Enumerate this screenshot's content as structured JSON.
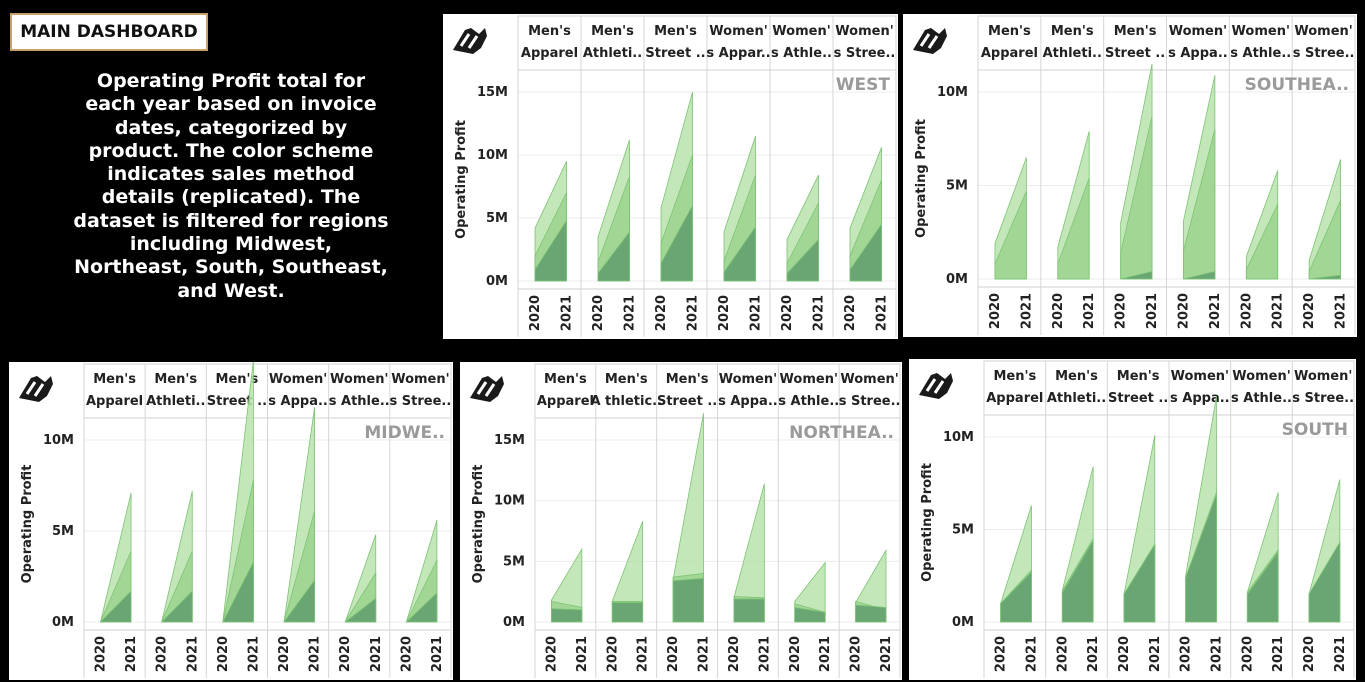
{
  "dashboard_title": "MAIN DASHBOARD",
  "description": "Operating Profit total for each year based on invoice dates, categorized by product. The color scheme indicates sales method details (replicated). The dataset is filtered for regions including Midwest, Northeast, South, Southeast, and West.",
  "colors": {
    "layer1": "#b9e3ac",
    "layer2": "#97d08a",
    "layer3": "#5f9e6e",
    "line": "#7cc474"
  },
  "icon": "logo-icon",
  "chart_data": [
    {
      "type": "area",
      "region_label": "WEST",
      "ylabel": "Operating Profit",
      "x": [
        "2020",
        "2021"
      ],
      "ylim": [
        0,
        15000000
      ],
      "yticks": [
        "0M",
        "5M",
        "10M",
        "15M"
      ],
      "categories": [
        {
          "header": [
            "Men's",
            "Apparel"
          ],
          "layers": [
            [
              4200000,
              9500000
            ],
            [
              2000000,
              7000000
            ],
            [
              900000,
              4800000
            ]
          ]
        },
        {
          "header": [
            "Men's",
            "Athleti.."
          ],
          "layers": [
            [
              3500000,
              11200000
            ],
            [
              1500000,
              8300000
            ],
            [
              600000,
              3900000
            ]
          ]
        },
        {
          "header": [
            "Men's",
            "Street .."
          ],
          "layers": [
            [
              5800000,
              15000000
            ],
            [
              3000000,
              10000000
            ],
            [
              1400000,
              6000000
            ]
          ]
        },
        {
          "header": [
            "Women'",
            "s Appar.."
          ],
          "layers": [
            [
              3900000,
              11500000
            ],
            [
              1600000,
              8400000
            ],
            [
              700000,
              4300000
            ]
          ]
        },
        {
          "header": [
            "Women'",
            "s Athle.."
          ],
          "layers": [
            [
              3300000,
              8400000
            ],
            [
              1400000,
              6200000
            ],
            [
              600000,
              3300000
            ]
          ]
        },
        {
          "header": [
            "Women'",
            "s Stree.."
          ],
          "layers": [
            [
              4200000,
              10600000
            ],
            [
              2000000,
              8000000
            ],
            [
              900000,
              4500000
            ]
          ]
        }
      ]
    },
    {
      "type": "area",
      "region_label": "SOUTHEA..",
      "ylabel": "Operating Profit",
      "x": [
        "2020",
        "2021"
      ],
      "ylim": [
        0,
        10000000
      ],
      "yticks": [
        "0M",
        "5M",
        "10M"
      ],
      "categories": [
        {
          "header": [
            "Men's",
            "Apparel"
          ],
          "layers": [
            [
              1900000,
              6500000
            ],
            [
              800000,
              4700000
            ],
            [
              0,
              0
            ]
          ]
        },
        {
          "header": [
            "Men's",
            "Athleti.."
          ],
          "layers": [
            [
              1700000,
              7900000
            ],
            [
              800000,
              5400000
            ],
            [
              0,
              0
            ]
          ]
        },
        {
          "header": [
            "Men's",
            "Street .."
          ],
          "layers": [
            [
              3000000,
              11500000
            ],
            [
              1400000,
              8700000
            ],
            [
              0,
              400000
            ]
          ]
        },
        {
          "header": [
            "Women'",
            "s Appa.."
          ],
          "layers": [
            [
              3100000,
              10900000
            ],
            [
              1500000,
              8000000
            ],
            [
              0,
              400000
            ]
          ]
        },
        {
          "header": [
            "Women'",
            "s Athle.."
          ],
          "layers": [
            [
              1200000,
              5800000
            ],
            [
              500000,
              4000000
            ],
            [
              0,
              0
            ]
          ]
        },
        {
          "header": [
            "Women'",
            "s Stree.."
          ],
          "layers": [
            [
              1000000,
              6400000
            ],
            [
              400000,
              4200000
            ],
            [
              0,
              200000
            ]
          ]
        }
      ]
    },
    {
      "type": "area",
      "region_label": "MIDWE..",
      "ylabel": "Operating Profit",
      "x": [
        "2020",
        "2021"
      ],
      "ylim": [
        0,
        10000000
      ],
      "yticks": [
        "0M",
        "5M",
        "10M"
      ],
      "categories": [
        {
          "header": [
            "Men's",
            "Apparel"
          ],
          "layers": [
            [
              0,
              7100000
            ],
            [
              0,
              3900000
            ],
            [
              0,
              1700000
            ]
          ]
        },
        {
          "header": [
            "Men's",
            "Athleti.."
          ],
          "layers": [
            [
              0,
              7200000
            ],
            [
              0,
              3900000
            ],
            [
              0,
              1700000
            ]
          ]
        },
        {
          "header": [
            "Men's",
            "Street .."
          ],
          "layers": [
            [
              0,
              14400000
            ],
            [
              0,
              7800000
            ],
            [
              0,
              3300000
            ]
          ]
        },
        {
          "header": [
            "Women'",
            "s Appa.."
          ],
          "layers": [
            [
              0,
              11800000
            ],
            [
              0,
              6100000
            ],
            [
              0,
              2300000
            ]
          ]
        },
        {
          "header": [
            "Women'",
            "s Athle.."
          ],
          "layers": [
            [
              0,
              4800000
            ],
            [
              0,
              2700000
            ],
            [
              0,
              1300000
            ]
          ]
        },
        {
          "header": [
            "Women'",
            "s Stree.."
          ],
          "layers": [
            [
              0,
              5600000
            ],
            [
              0,
              3400000
            ],
            [
              0,
              1600000
            ]
          ]
        }
      ]
    },
    {
      "type": "area",
      "region_label": "NORTHEA..",
      "ylabel": "Operating Profit",
      "x": [
        "2020",
        "2021"
      ],
      "ylim": [
        0,
        15000000
      ],
      "yticks": [
        "0M",
        "5M",
        "10M",
        "15M"
      ],
      "categories": [
        {
          "header": [
            "Men's",
            "Apparel"
          ],
          "layers": [
            [
              1800000,
              6000000
            ],
            [
              1700000,
              1200000
            ],
            [
              1100000,
              1000000
            ]
          ]
        },
        {
          "header": [
            "Men's",
            "A thletic.."
          ],
          "layers": [
            [
              1700000,
              8300000
            ],
            [
              1700000,
              1700000
            ],
            [
              1600000,
              1600000
            ]
          ]
        },
        {
          "header": [
            "Men's",
            "Street .."
          ],
          "layers": [
            [
              3500000,
              17200000
            ],
            [
              3700000,
              4000000
            ],
            [
              3400000,
              3600000
            ]
          ]
        },
        {
          "header": [
            "Women'",
            "s Appa.."
          ],
          "layers": [
            [
              2000000,
              11400000
            ],
            [
              2100000,
              2000000
            ],
            [
              1900000,
              1900000
            ]
          ]
        },
        {
          "header": [
            "Women'",
            "s Athle.."
          ],
          "layers": [
            [
              1700000,
              4900000
            ],
            [
              1500000,
              800000
            ],
            [
              1200000,
              800000
            ]
          ]
        },
        {
          "header": [
            "Women'",
            "s Stree.."
          ],
          "layers": [
            [
              1600000,
              5900000
            ],
            [
              1700000,
              1000000
            ],
            [
              1400000,
              1200000
            ]
          ]
        }
      ]
    },
    {
      "type": "area",
      "region_label": "SOUTH",
      "ylabel": "Operating Profit",
      "x": [
        "2020",
        "2021"
      ],
      "ylim": [
        0,
        10000000
      ],
      "yticks": [
        "0M",
        "5M",
        "10M"
      ],
      "categories": [
        {
          "header": [
            "Men's",
            "Apparel"
          ],
          "layers": [
            [
              1000000,
              6300000
            ],
            [
              1000000,
              2800000
            ],
            [
              1000000,
              2700000
            ]
          ]
        },
        {
          "header": [
            "Men's",
            "Athleti.."
          ],
          "layers": [
            [
              1700000,
              8400000
            ],
            [
              1700000,
              4500000
            ],
            [
              1600000,
              4400000
            ]
          ]
        },
        {
          "header": [
            "Men's",
            "Street .."
          ],
          "layers": [
            [
              1500000,
              10100000
            ],
            [
              1500000,
              4200000
            ],
            [
              1500000,
              4200000
            ]
          ]
        },
        {
          "header": [
            "Women'",
            "s Appa.."
          ],
          "layers": [
            [
              2500000,
              12200000
            ],
            [
              2400000,
              7000000
            ],
            [
              2400000,
              6900000
            ]
          ]
        },
        {
          "header": [
            "Women'",
            "s Athle.."
          ],
          "layers": [
            [
              1600000,
              7000000
            ],
            [
              1600000,
              3900000
            ],
            [
              1500000,
              3800000
            ]
          ]
        },
        {
          "header": [
            "Women'",
            "s Stree.."
          ],
          "layers": [
            [
              1500000,
              7700000
            ],
            [
              1500000,
              4300000
            ],
            [
              1500000,
              4300000
            ]
          ]
        }
      ]
    }
  ]
}
